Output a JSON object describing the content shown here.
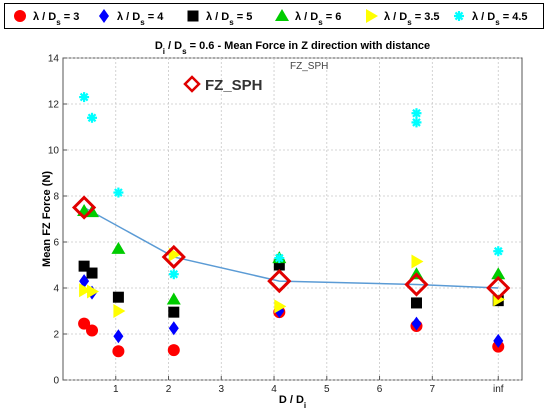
{
  "chart_data": {
    "type": "scatter",
    "title_parts": [
      "D",
      "i",
      " / D",
      "s",
      " = 0.6 - Mean Force in Z direction with distance"
    ],
    "xlabel_parts": [
      "D / D",
      "i"
    ],
    "ylabel": "Mean FZ Force (N)",
    "annotation_small": "FZ_SPH",
    "annotation_large": "FZ_SPH",
    "xlim": [
      0,
      8.7
    ],
    "ylim": [
      0,
      14
    ],
    "x_ticks": [
      {
        "value": 1,
        "label": "1"
      },
      {
        "value": 2,
        "label": "2"
      },
      {
        "value": 3,
        "label": "3"
      },
      {
        "value": 4,
        "label": "4"
      },
      {
        "value": 5,
        "label": "5"
      },
      {
        "value": 6,
        "label": "6"
      },
      {
        "value": 7,
        "label": "7"
      },
      {
        "value": 8.25,
        "label": "inf"
      }
    ],
    "y_ticks": [
      0,
      2,
      4,
      6,
      8,
      10,
      12,
      14
    ],
    "grid": true,
    "legend_position": "top",
    "series": [
      {
        "name": "3",
        "marker": "circle",
        "color": "#ff0000",
        "points": [
          [
            0.4,
            2.45
          ],
          [
            0.55,
            2.15
          ],
          [
            1.05,
            1.25
          ],
          [
            2.1,
            1.3
          ],
          [
            4.1,
            2.95
          ],
          [
            6.7,
            2.35
          ],
          [
            8.25,
            1.45
          ]
        ]
      },
      {
        "name": "4",
        "marker": "diamond",
        "color": "#0000ff",
        "points": [
          [
            0.4,
            4.3
          ],
          [
            0.55,
            3.8
          ],
          [
            1.05,
            1.9
          ],
          [
            2.1,
            2.25
          ],
          [
            4.1,
            3.0
          ],
          [
            6.7,
            2.45
          ],
          [
            8.25,
            1.7
          ]
        ]
      },
      {
        "name": "5",
        "marker": "square",
        "color": "#000000",
        "points": [
          [
            0.4,
            4.95
          ],
          [
            0.55,
            4.65
          ],
          [
            1.05,
            3.6
          ],
          [
            2.1,
            2.95
          ],
          [
            4.1,
            5.0
          ],
          [
            6.7,
            3.35
          ],
          [
            8.25,
            3.45
          ]
        ]
      },
      {
        "name": "6",
        "marker": "triangle-up",
        "color": "#00cc00",
        "points": [
          [
            0.4,
            7.35
          ],
          [
            0.55,
            7.3
          ],
          [
            1.05,
            5.7
          ],
          [
            2.1,
            3.5
          ],
          [
            4.1,
            5.3
          ],
          [
            6.7,
            4.6
          ],
          [
            8.25,
            4.6
          ]
        ]
      },
      {
        "name": "3.5",
        "marker": "triangle-right",
        "color": "#ffff00",
        "points": [
          [
            0.4,
            3.9
          ],
          [
            0.55,
            3.85
          ],
          [
            1.05,
            3.0
          ],
          [
            2.1,
            5.45
          ],
          [
            4.1,
            3.2
          ],
          [
            6.7,
            5.15
          ],
          [
            8.25,
            3.5
          ]
        ]
      },
      {
        "name": "4.5",
        "marker": "asterisk",
        "color": "#00ffff",
        "points": [
          [
            0.4,
            12.3
          ],
          [
            0.55,
            11.4
          ],
          [
            1.05,
            8.15
          ],
          [
            2.1,
            4.6
          ],
          [
            4.1,
            5.3
          ],
          [
            6.7,
            11.6
          ],
          [
            6.7,
            11.2
          ],
          [
            8.25,
            5.6
          ]
        ]
      }
    ],
    "line_series": {
      "name": "FZ_SPH",
      "color": "#5b9bd5",
      "marker_color": "#e00000",
      "points": [
        [
          0.4,
          7.5
        ],
        [
          2.1,
          5.35
        ],
        [
          4.1,
          4.3
        ],
        [
          6.7,
          4.15
        ],
        [
          8.25,
          4.0
        ]
      ]
    }
  }
}
